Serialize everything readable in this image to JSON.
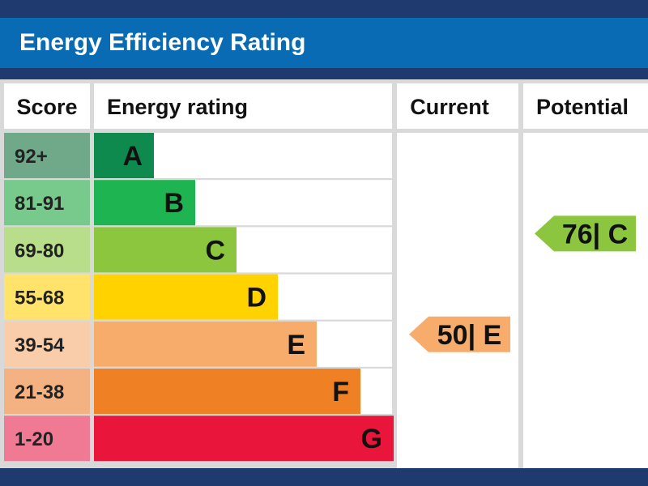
{
  "title": "Energy Efficiency Rating",
  "columns": {
    "score": "Score",
    "rating": "Energy rating",
    "current": "Current",
    "potential": "Potential"
  },
  "chart_data": {
    "type": "bar",
    "categories": [
      "92+",
      "81-91",
      "69-80",
      "55-68",
      "39-54",
      "21-38",
      "1-20"
    ],
    "letters": [
      "A",
      "B",
      "C",
      "D",
      "E",
      "F",
      "G"
    ],
    "colors": [
      "#0f8a4e",
      "#1db451",
      "#8cc63f",
      "#ffd200",
      "#f7ac6b",
      "#ef8023",
      "#e9153b"
    ],
    "score_colors": [
      "#6fa98a",
      "#78c98c",
      "#b8de8c",
      "#ffe36a",
      "#f9ccaa",
      "#f4b283",
      "#f07a93"
    ],
    "current": {
      "value": 50,
      "letter": "E",
      "label": "50| E",
      "color": "#f7ac6b"
    },
    "potential": {
      "value": 76,
      "letter": "C",
      "label": "76| C",
      "color": "#8cc63f"
    }
  }
}
